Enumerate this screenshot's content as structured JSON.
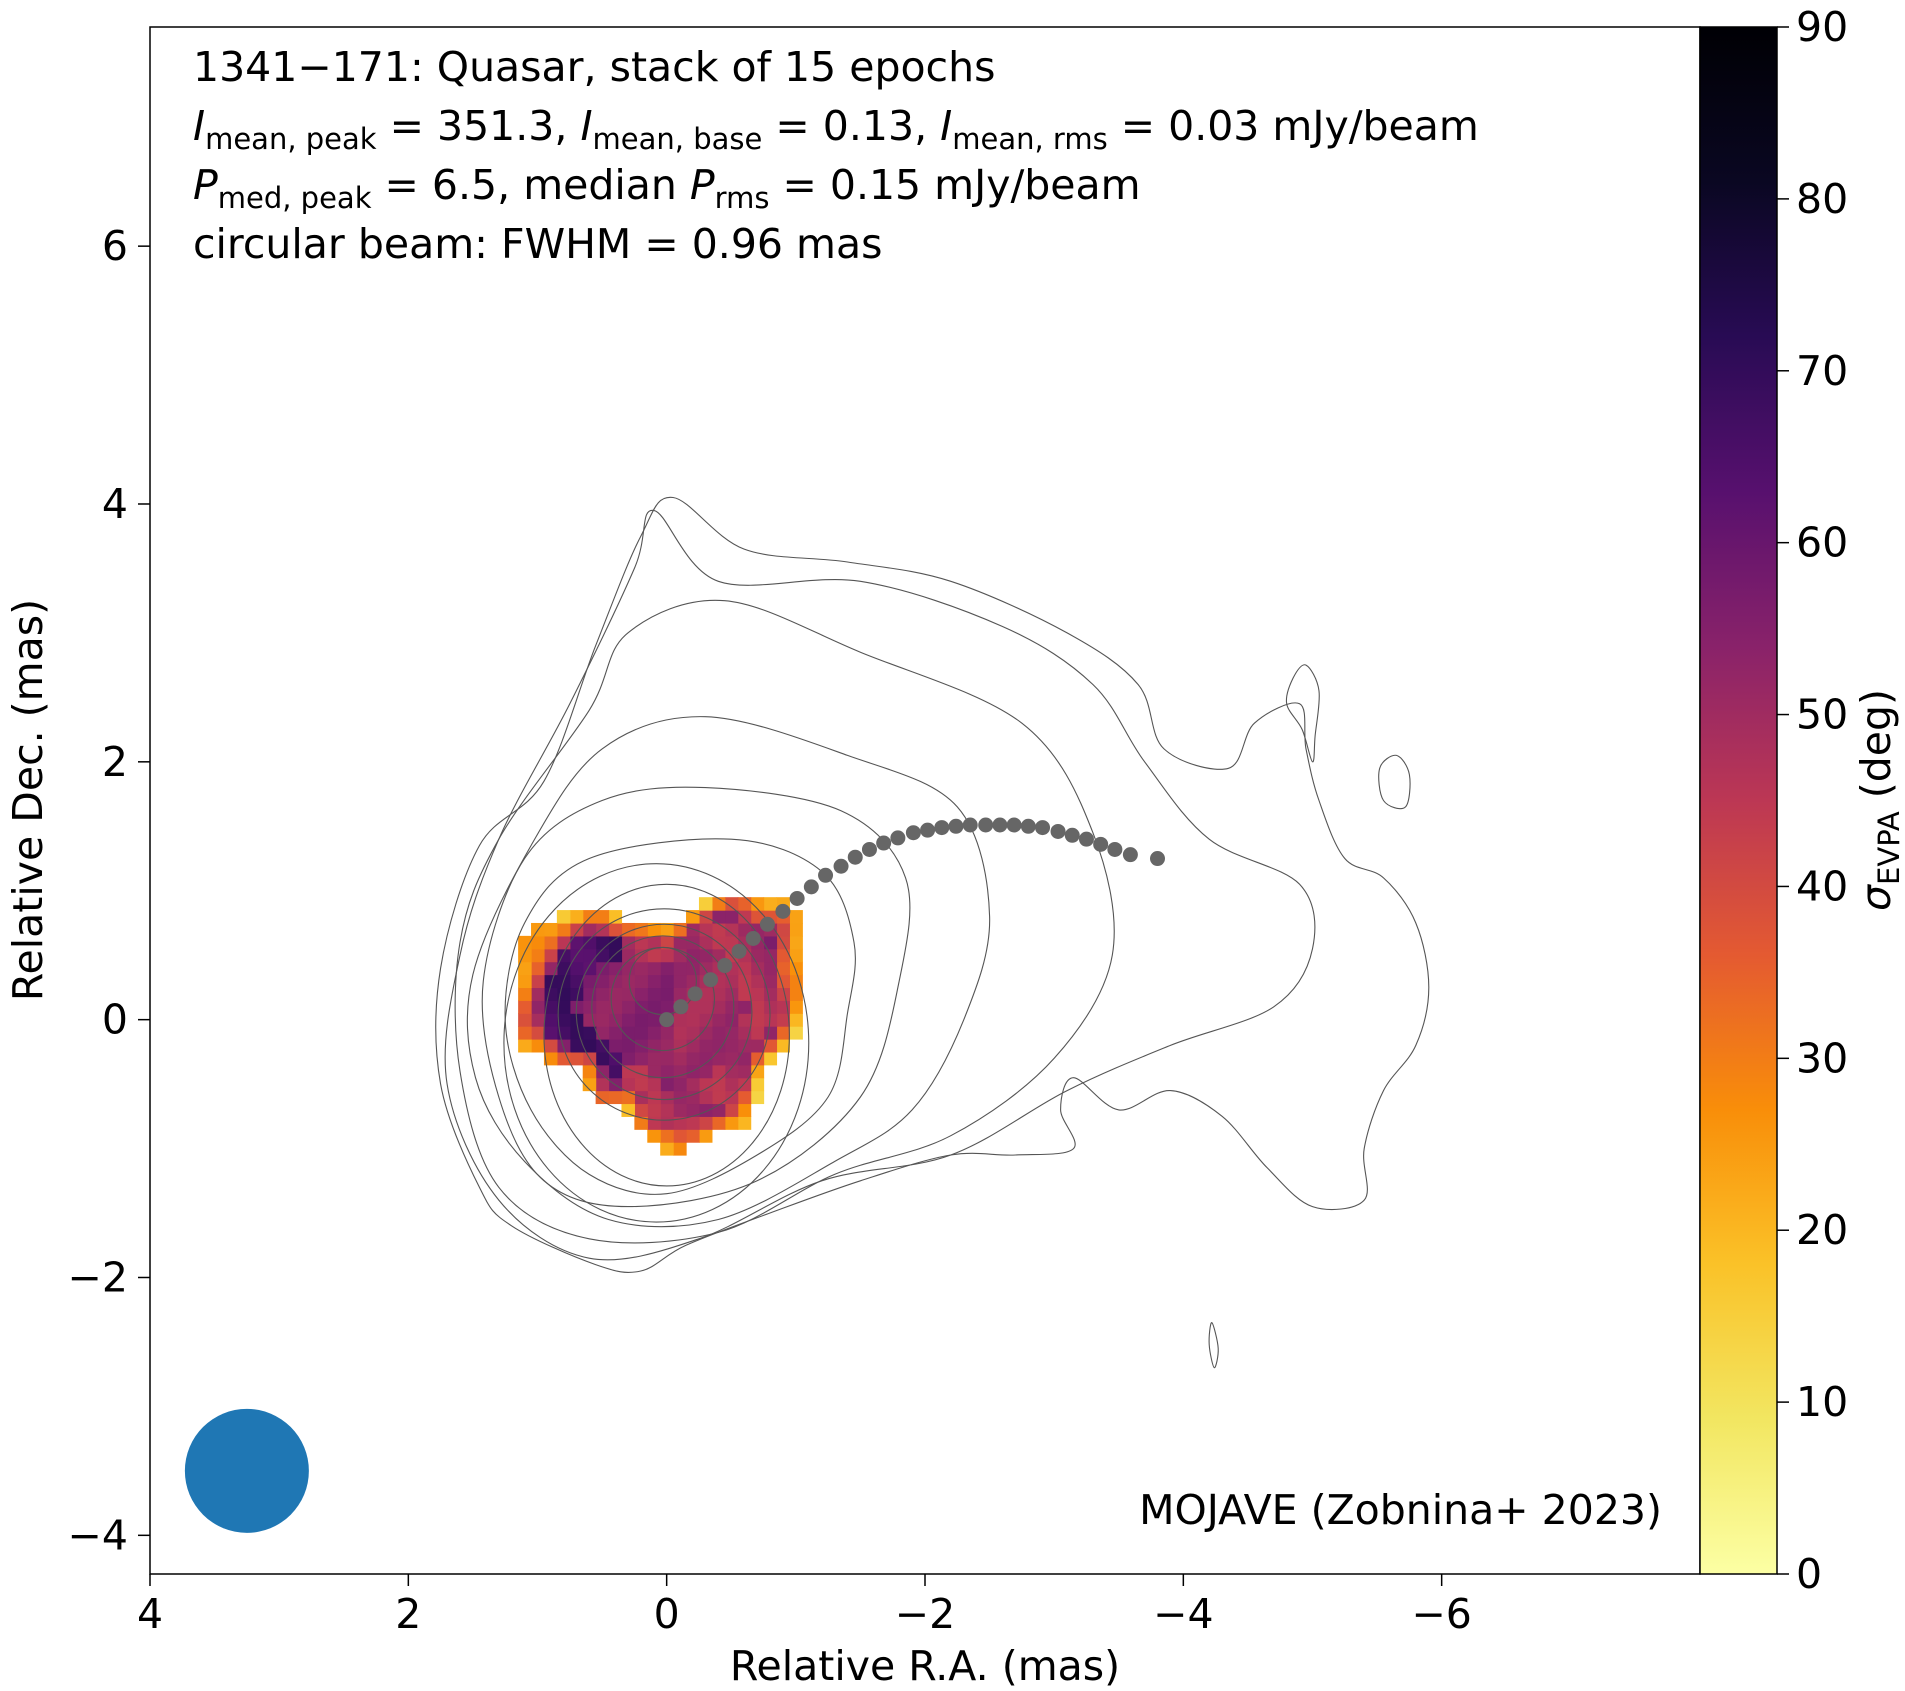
{
  "chart_data": {
    "type": "heatmap",
    "header_lines": [
      {
        "segments": [
          {
            "t": "1341−171: Quasar, stack of 15 epochs"
          }
        ]
      },
      {
        "segments": [
          {
            "t": "I",
            "it": true
          },
          {
            "t": "mean, peak",
            "sub": true
          },
          {
            "t": " = 351.3, "
          },
          {
            "t": "I",
            "it": true
          },
          {
            "t": "mean, base",
            "sub": true
          },
          {
            "t": " = 0.13, "
          },
          {
            "t": "I",
            "it": true
          },
          {
            "t": "mean, rms",
            "sub": true
          },
          {
            "t": " = 0.03 mJy/beam"
          }
        ]
      },
      {
        "segments": [
          {
            "t": "P",
            "it": true
          },
          {
            "t": "med, peak",
            "sub": true
          },
          {
            "t": " = 6.5, median "
          },
          {
            "t": "P",
            "it": true
          },
          {
            "t": "rms",
            "sub": true
          },
          {
            "t": " = 0.15 mJy/beam"
          }
        ]
      },
      {
        "segments": [
          {
            "t": "circular beam: FWHM = 0.96 mas"
          }
        ]
      }
    ],
    "credit": "MOJAVE (Zobnina+ 2023)",
    "xlabel": "Relative R.A. (mas)",
    "ylabel": "Relative Dec. (mas)",
    "xlim": [
      4.0,
      -8.0
    ],
    "ylim": [
      -4.3,
      7.7
    ],
    "xticks": [
      4,
      2,
      0,
      -2,
      -4,
      -6
    ],
    "xtick_labels": [
      "4",
      "2",
      "0",
      "−2",
      "−4",
      "−6"
    ],
    "yticks": [
      -4,
      -2,
      0,
      2,
      4,
      6
    ],
    "ytick_labels": [
      "−4",
      "−2",
      "0",
      "2",
      "4",
      "6"
    ],
    "colorbar": {
      "label_symbol": "σ",
      "label_sub": "EVPA",
      "label_unit": " (deg)",
      "range": [
        0,
        90
      ],
      "ticks": [
        0,
        10,
        20,
        30,
        40,
        50,
        60,
        70,
        80,
        90
      ],
      "tick_labels": [
        "0",
        "10",
        "20",
        "30",
        "40",
        "50",
        "60",
        "70",
        "80",
        "90"
      ],
      "colormap": "inferno_r"
    },
    "beam": {
      "x": 3.25,
      "y": -3.5,
      "fwhm": 0.96,
      "color": "#1f77b4"
    },
    "ridgeline": {
      "color": "#666666",
      "points": [
        [
          0,
          0
        ],
        [
          -0.11,
          0.1
        ],
        [
          -0.22,
          0.2
        ],
        [
          -0.34,
          0.31
        ],
        [
          -0.45,
          0.42
        ],
        [
          -0.56,
          0.53
        ],
        [
          -0.67,
          0.63
        ],
        [
          -0.78,
          0.74
        ],
        [
          -0.9,
          0.84
        ],
        [
          -1.01,
          0.94
        ],
        [
          -1.12,
          1.03
        ],
        [
          -1.23,
          1.12
        ],
        [
          -1.35,
          1.19
        ],
        [
          -1.46,
          1.26
        ],
        [
          -1.57,
          1.32
        ],
        [
          -1.68,
          1.37
        ],
        [
          -1.79,
          1.41
        ],
        [
          -1.91,
          1.45
        ],
        [
          -2.02,
          1.47
        ],
        [
          -2.13,
          1.49
        ],
        [
          -2.24,
          1.5
        ],
        [
          -2.35,
          1.51
        ],
        [
          -2.47,
          1.51
        ],
        [
          -2.58,
          1.51
        ],
        [
          -2.69,
          1.51
        ],
        [
          -2.8,
          1.5
        ],
        [
          -2.91,
          1.49
        ],
        [
          -3.03,
          1.46
        ],
        [
          -3.14,
          1.43
        ],
        [
          -3.25,
          1.4
        ],
        [
          -3.36,
          1.36
        ],
        [
          -3.47,
          1.32
        ],
        [
          -3.59,
          1.28
        ],
        [
          -3.8,
          1.25
        ]
      ]
    },
    "contours": {
      "color": "#555555",
      "core_levels": [
        {
          "rx": 0.95,
          "ry": 1.17,
          "cx": 0.0,
          "cy": -0.12
        },
        {
          "rx": 1.18,
          "ry": 1.39,
          "cx": 0.08,
          "cy": -0.18
        }
      ],
      "inner_circles": [
        {
          "r": 0.26,
          "cx": 0.03,
          "cy": 0.3
        },
        {
          "r": 0.4,
          "cx": 0.03,
          "cy": 0.16
        },
        {
          "r": 0.55,
          "cx": 0.03,
          "cy": 0.1
        },
        {
          "r": 0.68,
          "cx": 0.02,
          "cy": 0.06
        },
        {
          "r": 0.82,
          "cx": 0.02,
          "cy": 0.04
        }
      ],
      "outer_levels": [
        [
          [
            -0.5,
            1.4
          ],
          [
            -1.2,
            1.15
          ],
          [
            -1.45,
            0.6
          ],
          [
            -1.4,
            0.05
          ],
          [
            -1.25,
            -0.6
          ],
          [
            -0.7,
            -1.05
          ],
          [
            0,
            -1.35
          ],
          [
            0.6,
            -1.2
          ],
          [
            1.05,
            -0.7
          ],
          [
            1.25,
            0
          ],
          [
            1.1,
            0.75
          ],
          [
            0.6,
            1.25
          ]
        ],
        [
          [
            -0.3,
            1.8
          ],
          [
            -1.35,
            1.62
          ],
          [
            -1.85,
            1.1
          ],
          [
            -1.8,
            0.3
          ],
          [
            -1.5,
            -0.6
          ],
          [
            -0.7,
            -1.25
          ],
          [
            0.3,
            -1.45
          ],
          [
            0.95,
            -1.25
          ],
          [
            1.3,
            -0.6
          ],
          [
            1.42,
            0.3
          ],
          [
            1.1,
            1.25
          ],
          [
            0.5,
            1.7
          ]
        ],
        [
          [
            -0.3,
            2.35
          ],
          [
            -1.4,
            2.05
          ],
          [
            -2.25,
            1.65
          ],
          [
            -2.5,
            0.8
          ],
          [
            -2.3,
            0
          ],
          [
            -1.9,
            -0.7
          ],
          [
            -1.3,
            -1.1
          ],
          [
            -0.4,
            -1.55
          ],
          [
            0.45,
            -1.55
          ],
          [
            1.1,
            -1.1
          ],
          [
            1.48,
            -0.45
          ],
          [
            1.5,
            0.35
          ],
          [
            1.05,
            1.35
          ],
          [
            0.5,
            2.1
          ]
        ],
        [
          [
            0.3,
            3.0
          ],
          [
            -0.45,
            3.25
          ],
          [
            -1.5,
            2.85
          ],
          [
            -2.75,
            2.3
          ],
          [
            -3.3,
            1.45
          ],
          [
            -3.45,
            0.5
          ],
          [
            -3.0,
            -0.3
          ],
          [
            -2.2,
            -0.9
          ],
          [
            -1.3,
            -1.2
          ],
          [
            -0.4,
            -1.65
          ],
          [
            0.6,
            -1.7
          ],
          [
            1.3,
            -1.3
          ],
          [
            1.6,
            -0.4
          ],
          [
            1.6,
            0.6
          ],
          [
            1.3,
            1.4
          ],
          [
            0.6,
            2.4
          ]
        ],
        [
          [
            0.1,
            3.95
          ],
          [
            -0.4,
            3.4
          ],
          [
            -1.5,
            3.4
          ],
          [
            -2.6,
            3.05
          ],
          [
            -3.3,
            2.6
          ],
          [
            -3.7,
            2.0
          ],
          [
            -4.2,
            1.4
          ],
          [
            -4.9,
            1.05
          ],
          [
            -5.0,
            0.55
          ],
          [
            -4.7,
            0.1
          ],
          [
            -3.9,
            -0.2
          ],
          [
            -3.1,
            -0.55
          ],
          [
            -2.2,
            -1.05
          ],
          [
            -1.2,
            -1.25
          ],
          [
            -0.25,
            -1.7
          ],
          [
            0.6,
            -1.85
          ],
          [
            1.3,
            -1.4
          ],
          [
            1.7,
            -0.5
          ],
          [
            1.6,
            0.5
          ],
          [
            1.3,
            1.4
          ],
          [
            0.75,
            2.45
          ],
          [
            0.25,
            3.5
          ]
        ],
        [
          [
            -0.05,
            4.05
          ],
          [
            -0.6,
            3.65
          ],
          [
            -1.4,
            3.55
          ],
          [
            -2.2,
            3.4
          ],
          [
            -3.1,
            3.0
          ],
          [
            -3.65,
            2.6
          ],
          [
            -3.85,
            2.1
          ],
          [
            -4.35,
            1.95
          ],
          [
            -4.55,
            2.3
          ],
          [
            -4.9,
            2.45
          ],
          [
            -4.95,
            2.1
          ],
          [
            -5.05,
            1.7
          ],
          [
            -5.25,
            1.25
          ],
          [
            -5.55,
            1.1
          ],
          [
            -5.8,
            0.75
          ],
          [
            -5.9,
            0.25
          ],
          [
            -5.8,
            -0.2
          ],
          [
            -5.55,
            -0.55
          ],
          [
            -5.4,
            -1.0
          ],
          [
            -5.4,
            -1.4
          ],
          [
            -5.0,
            -1.45
          ],
          [
            -4.65,
            -1.15
          ],
          [
            -4.3,
            -0.75
          ],
          [
            -3.9,
            -0.55
          ],
          [
            -3.5,
            -0.7
          ],
          [
            -3.15,
            -0.45
          ],
          [
            -3.05,
            -0.7
          ],
          [
            -3.15,
            -1.0
          ],
          [
            -2.7,
            -1.05
          ],
          [
            -2.2,
            -1.05
          ],
          [
            -1.5,
            -1.25
          ],
          [
            -0.8,
            -1.5
          ],
          [
            -0.15,
            -1.75
          ],
          [
            0.2,
            -1.95
          ],
          [
            0.55,
            -1.9
          ],
          [
            1.2,
            -1.6
          ],
          [
            1.45,
            -1.3
          ],
          [
            1.75,
            -0.5
          ],
          [
            1.75,
            0.4
          ],
          [
            1.45,
            1.35
          ],
          [
            0.95,
            1.85
          ],
          [
            0.55,
            2.9
          ],
          [
            0.2,
            3.75
          ]
        ],
        [
          [
            -4.95,
            2.75
          ],
          [
            -5.05,
            2.55
          ],
          [
            -5.02,
            2.2
          ],
          [
            -5.0,
            2.0
          ],
          [
            -4.92,
            2.25
          ],
          [
            -4.8,
            2.45
          ],
          [
            -4.85,
            2.65
          ]
        ],
        [
          [
            -5.65,
            2.05
          ],
          [
            -5.75,
            1.9
          ],
          [
            -5.72,
            1.65
          ],
          [
            -5.55,
            1.7
          ],
          [
            -5.52,
            1.95
          ]
        ],
        [
          [
            -4.22,
            -2.35
          ],
          [
            -4.27,
            -2.55
          ],
          [
            -4.24,
            -2.7
          ],
          [
            -4.2,
            -2.52
          ]
        ]
      ]
    },
    "polarization_map": {
      "note": "sigma_EVPA (deg) on a 0.1 mas grid, values clipped to the colorbar range",
      "center": [
        0.0,
        0.05
      ],
      "pixel_mas": 0.1
    }
  }
}
